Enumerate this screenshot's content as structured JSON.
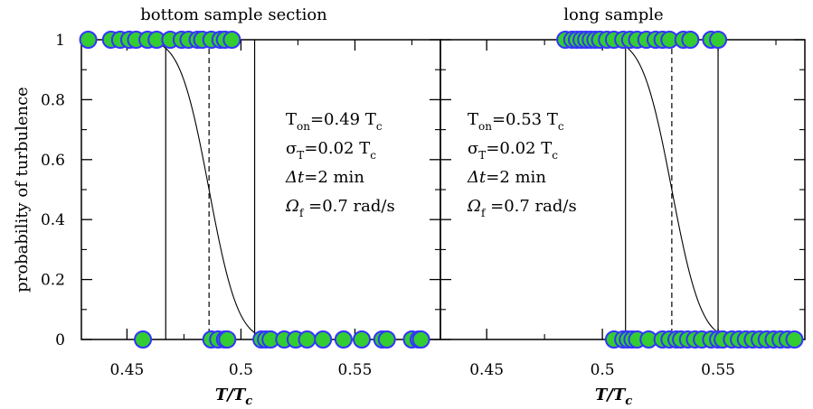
{
  "chart_data": [
    {
      "type": "scatter",
      "title": "bottom sample section",
      "xlabel": "T/T",
      "xlabel_sub": "c",
      "ylabel": "probability of turbulence",
      "xlim": [
        0.43,
        0.585
      ],
      "ylim": [
        0,
        1
      ],
      "xticks": [
        0.45,
        0.5,
        0.55
      ],
      "xtick_labels": [
        "0.45",
        "0.5",
        "0.55"
      ],
      "yticks": [
        0,
        0.2,
        0.4,
        0.6,
        0.8,
        1
      ],
      "ytick_labels": [
        "0",
        "0.2",
        "0.4",
        "0.6",
        "0.8",
        "1"
      ],
      "marker_fill": "#33cc33",
      "marker_edge": "#3333ff",
      "series": [
        {
          "values_y1": [
            0.433,
            0.443,
            0.447,
            0.451,
            0.454,
            0.459,
            0.463,
            0.469,
            0.474,
            0.477,
            0.481,
            0.483,
            0.487,
            0.491,
            0.493,
            0.496
          ]
        },
        {
          "values_y0": [
            0.457,
            0.487,
            0.49,
            0.493,
            0.494,
            0.509,
            0.511,
            0.513,
            0.519,
            0.524,
            0.529,
            0.536,
            0.545,
            0.553,
            0.562,
            0.564,
            0.575,
            0.578,
            0.579
          ]
        }
      ],
      "fit": {
        "center": 0.486,
        "sigma": 0.01
      },
      "vlines_solid": [
        0.467,
        0.506
      ],
      "vlines_dashed": [
        0.486
      ],
      "annotations": [
        {
          "main": "T",
          "sub": "on",
          "rest": "=0.49 T",
          "rest_sub": "c"
        },
        {
          "main": "σ",
          "sub": "T",
          "rest": "=0.02 T",
          "rest_sub": "c"
        },
        {
          "main": "Δt",
          "sub": "",
          "rest": "=2 min",
          "rest_sub": ""
        },
        {
          "main": "Ω",
          "sub": "f",
          "rest": " =0.7 rad/s",
          "rest_sub": ""
        }
      ]
    },
    {
      "type": "scatter",
      "title": "long sample",
      "xlabel": "T/T",
      "xlabel_sub": "c",
      "ylabel": "",
      "xlim": [
        0.43,
        0.585
      ],
      "ylim": [
        0,
        1
      ],
      "xticks": [
        0.45,
        0.5,
        0.55
      ],
      "xtick_labels": [
        "0.45",
        "0.5",
        "0.55"
      ],
      "yticks": [
        0,
        0.2,
        0.4,
        0.6,
        0.8,
        1
      ],
      "ytick_labels": [],
      "marker_fill": "#33cc33",
      "marker_edge": "#3333ff",
      "series": [
        {
          "values_y1": [
            0.484,
            0.487,
            0.489,
            0.491,
            0.493,
            0.495,
            0.497,
            0.499,
            0.502,
            0.505,
            0.509,
            0.512,
            0.515,
            0.519,
            0.523,
            0.526,
            0.529,
            0.535,
            0.538,
            0.547,
            0.55
          ]
        },
        {
          "values_y0": [
            0.505,
            0.509,
            0.511,
            0.513,
            0.515,
            0.52,
            0.526,
            0.529,
            0.532,
            0.534,
            0.537,
            0.54,
            0.543,
            0.547,
            0.55,
            0.552,
            0.556,
            0.559,
            0.562,
            0.565,
            0.568,
            0.571,
            0.574,
            0.577,
            0.58,
            0.583
          ]
        }
      ],
      "fit": {
        "center": 0.53,
        "sigma": 0.01
      },
      "vlines_solid": [
        0.51,
        0.55
      ],
      "vlines_dashed": [
        0.53
      ],
      "annotations": [
        {
          "main": "T",
          "sub": "on",
          "rest": "=0.53 T",
          "rest_sub": "c"
        },
        {
          "main": "σ",
          "sub": "T",
          "rest": "=0.02 T",
          "rest_sub": "c"
        },
        {
          "main": "Δt",
          "sub": "",
          "rest": "=2 min",
          "rest_sub": ""
        },
        {
          "main": "Ω",
          "sub": "f",
          "rest": " =0.7 rad/s",
          "rest_sub": ""
        }
      ]
    }
  ]
}
